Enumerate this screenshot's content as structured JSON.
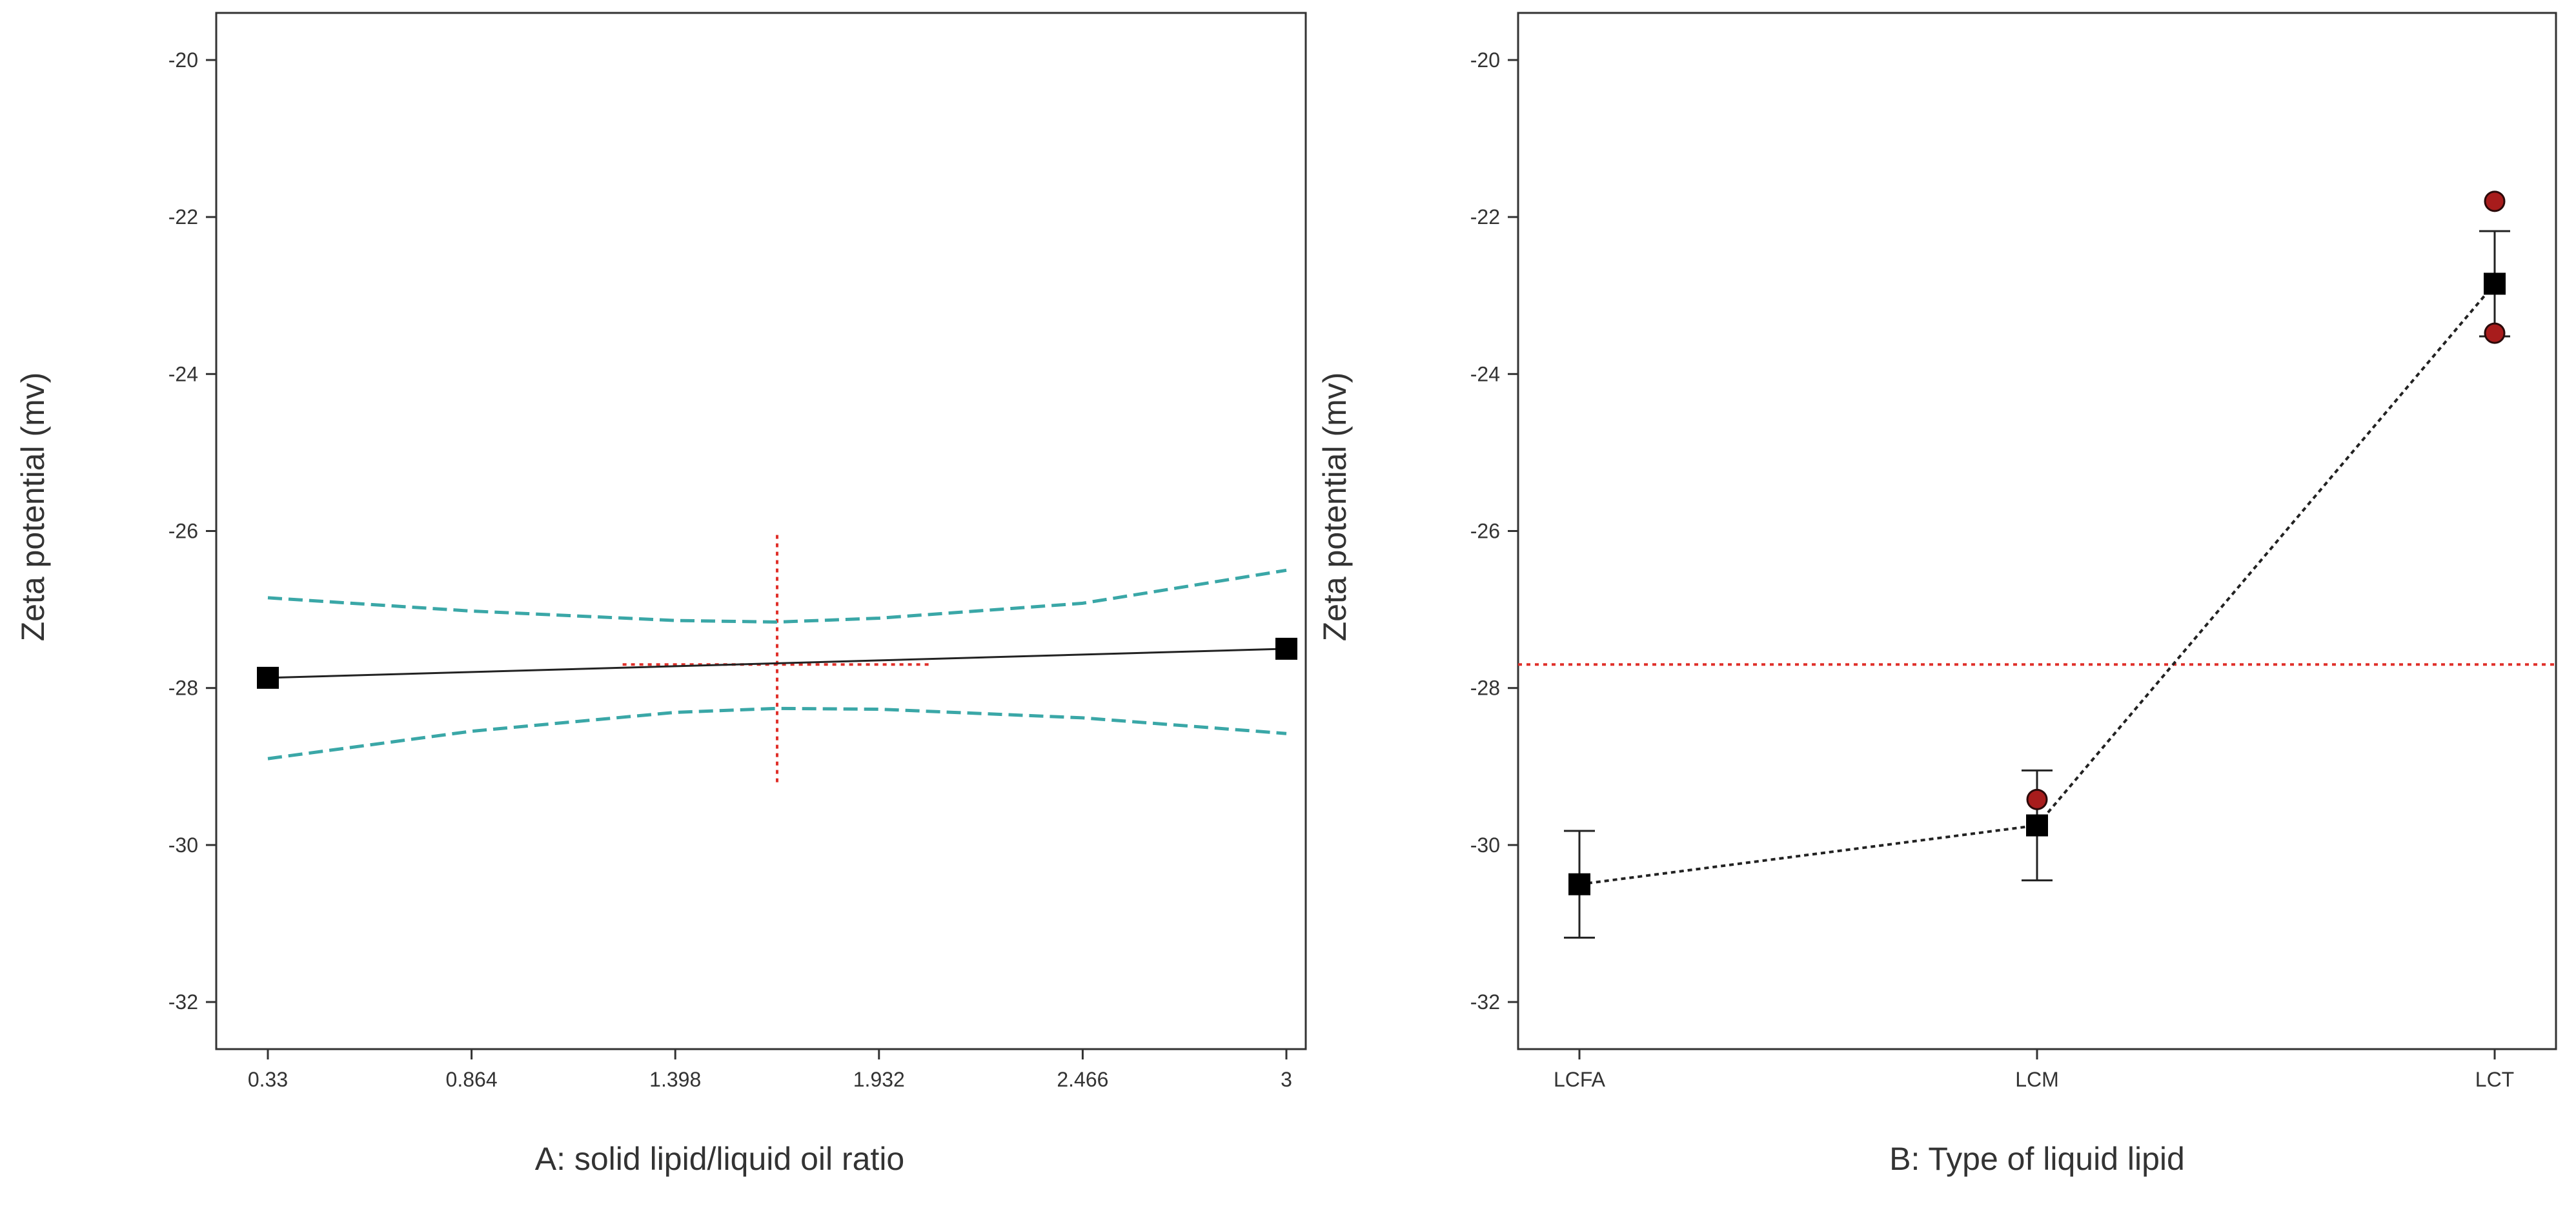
{
  "chart_data": [
    {
      "type": "line",
      "xlabel": "A: solid lipid/liquid oil ratio",
      "ylabel": "Zeta potential (mv)",
      "x_ticks": [
        "0.33",
        "0.864",
        "1.398",
        "1.932",
        "2.466",
        "3"
      ],
      "y_ticks": [
        "-20",
        "-22",
        "-24",
        "-26",
        "-28",
        "-30",
        "-32"
      ],
      "xlim": [
        0.33,
        3
      ],
      "ylim": [
        -32.6,
        -19.4
      ],
      "series": [
        {
          "role": "prediction",
          "color": "#222222",
          "style": "solid",
          "points": [
            [
              0.33,
              -27.87
            ],
            [
              3,
              -27.5
            ]
          ]
        },
        {
          "role": "ci-upper",
          "color": "#3aa7a7",
          "style": "dashed",
          "points": [
            [
              0.33,
              -26.85
            ],
            [
              0.864,
              -27.02
            ],
            [
              1.398,
              -27.14
            ],
            [
              1.665,
              -27.16
            ],
            [
              1.932,
              -27.11
            ],
            [
              2.466,
              -26.92
            ],
            [
              3,
              -26.5
            ]
          ]
        },
        {
          "role": "ci-lower",
          "color": "#3aa7a7",
          "style": "dashed",
          "points": [
            [
              0.33,
              -28.9
            ],
            [
              0.864,
              -28.55
            ],
            [
              1.398,
              -28.31
            ],
            [
              1.665,
              -28.26
            ],
            [
              1.932,
              -28.27
            ],
            [
              2.466,
              -28.38
            ],
            [
              3,
              -28.58
            ]
          ]
        }
      ],
      "markers": [
        [
          0.33,
          -27.87
        ],
        [
          3,
          -27.5
        ]
      ],
      "reference": {
        "color": "#e0302a",
        "x": 1.665,
        "x_span": [
          1.26,
          2.07
        ],
        "y": -27.7,
        "y_span": [
          -26.05,
          -29.25
        ]
      }
    },
    {
      "type": "line",
      "xlabel": "B: Type of liquid lipid",
      "ylabel": "Zeta potential (mv)",
      "categories": [
        "LCFA",
        "LCM",
        "LCT"
      ],
      "y_ticks": [
        "-20",
        "-22",
        "-24",
        "-26",
        "-28",
        "-30",
        "-32"
      ],
      "ylim": [
        -32.6,
        -19.4
      ],
      "means": [
        -30.5,
        -29.75,
        -22.85
      ],
      "error_bars": [
        [
          -31.18,
          -29.82
        ],
        [
          -30.45,
          -29.05
        ],
        [
          -23.52,
          -22.18
        ]
      ],
      "observed_points": [
        {
          "category": "LCM",
          "y": -29.42
        },
        {
          "category": "LCT",
          "y": -21.8
        },
        {
          "category": "LCT",
          "y": -23.48
        }
      ],
      "reference_y": -27.7,
      "colors": {
        "line": "#222222",
        "points": "#a81c1c",
        "reference": "#e0302a"
      }
    }
  ]
}
